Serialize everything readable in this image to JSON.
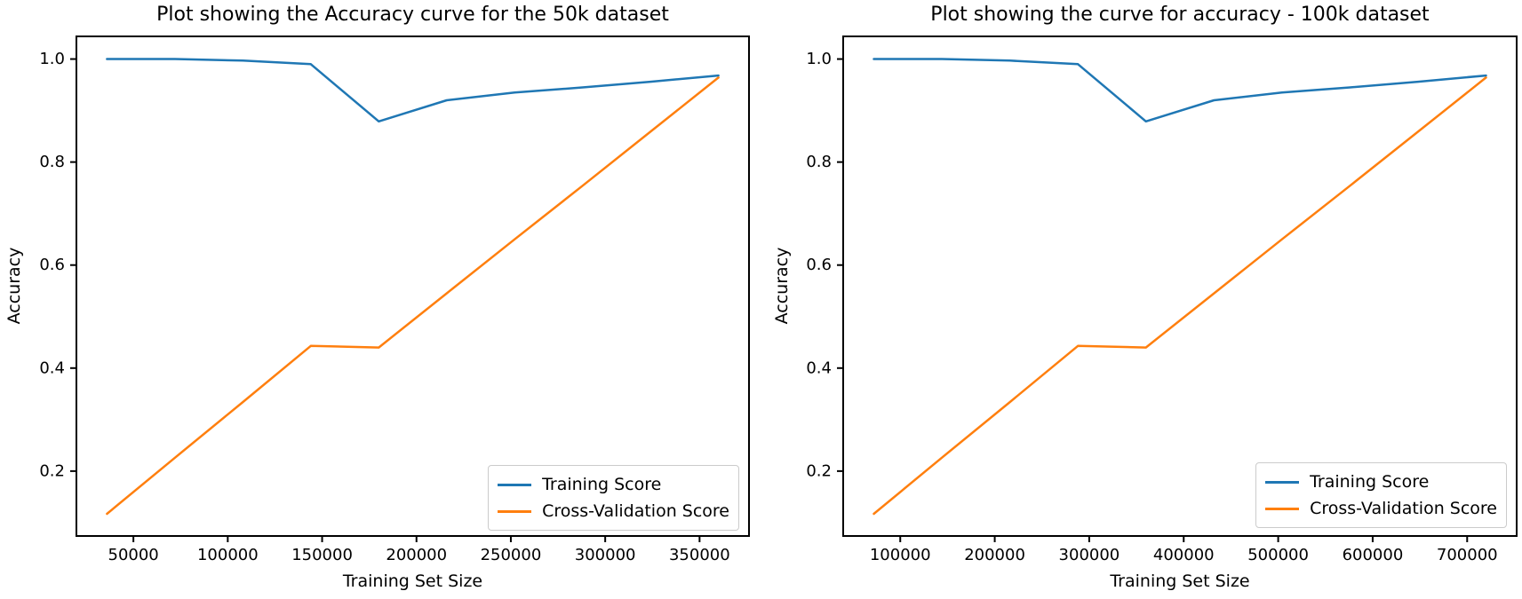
{
  "figure": {
    "background": "#ffffff"
  },
  "chart_data": [
    {
      "type": "line",
      "title": "Plot showing the Accuracy curve for the 50k dataset",
      "xlabel": "Training Set Size",
      "ylabel": "Accuracy",
      "xlim": [
        19800,
        376200
      ],
      "ylim": [
        0.074,
        1.044
      ],
      "x_ticks": [
        50000,
        100000,
        150000,
        200000,
        250000,
        300000,
        350000
      ],
      "y_ticks": [
        0.2,
        0.4,
        0.6,
        0.8,
        1.0
      ],
      "grid": false,
      "legend_position": "lower right",
      "x": [
        36000,
        72000,
        108000,
        144000,
        180000,
        216000,
        252000,
        288000,
        324000,
        360000
      ],
      "series": [
        {
          "name": "Training Score",
          "color": "#1f77b4",
          "values": [
            1.0,
            1.0,
            0.997,
            0.99,
            0.879,
            0.92,
            0.935,
            0.945,
            0.956,
            0.968
          ]
        },
        {
          "name": "Cross-Validation Score",
          "color": "#ff7f0e",
          "values": [
            0.117,
            0.226,
            0.334,
            0.443,
            0.44,
            0.545,
            0.65,
            0.754,
            0.859,
            0.964
          ]
        }
      ]
    },
    {
      "type": "line",
      "title": "Plot showing the curve for accuracy - 100k dataset",
      "xlabel": "Training Set Size",
      "ylabel": "Accuracy",
      "xlim": [
        39600,
        752400
      ],
      "ylim": [
        0.074,
        1.044
      ],
      "x_ticks": [
        100000,
        200000,
        300000,
        400000,
        500000,
        600000,
        700000
      ],
      "y_ticks": [
        0.2,
        0.4,
        0.6,
        0.8,
        1.0
      ],
      "grid": false,
      "legend_position": "lower right",
      "x": [
        72000,
        144000,
        216000,
        288000,
        360000,
        432000,
        504000,
        576000,
        648000,
        720000
      ],
      "series": [
        {
          "name": "Training Score",
          "color": "#1f77b4",
          "values": [
            1.0,
            1.0,
            0.997,
            0.99,
            0.879,
            0.92,
            0.935,
            0.945,
            0.956,
            0.968
          ]
        },
        {
          "name": "Cross-Validation Score",
          "color": "#ff7f0e",
          "values": [
            0.117,
            0.226,
            0.334,
            0.443,
            0.44,
            0.545,
            0.65,
            0.754,
            0.859,
            0.964
          ]
        }
      ]
    }
  ]
}
